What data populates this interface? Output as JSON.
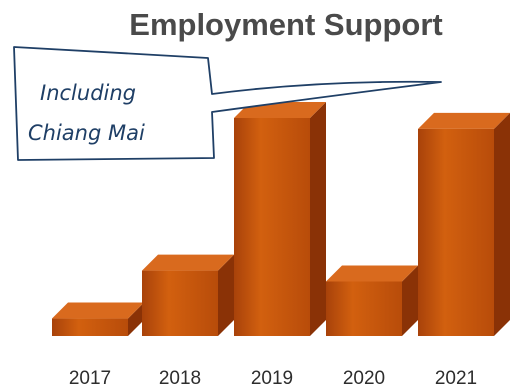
{
  "chart_data": {
    "type": "bar",
    "title": "Employment Support",
    "categories": [
      "2017",
      "2018",
      "2019",
      "2020",
      "2021"
    ],
    "values": [
      8,
      30,
      100,
      25,
      95
    ],
    "xlabel": "",
    "ylabel": "",
    "ylim": [
      0,
      100
    ],
    "grid": false,
    "legend": "none",
    "bar_style": "3d",
    "annotation": {
      "lines": [
        "Including",
        "Chiang Mai"
      ]
    }
  },
  "colors": {
    "bar_front": "#c9560a",
    "bar_front_dark": "#a8420a",
    "bar_top": "#d96a1e",
    "bar_side": "#8a3206",
    "callout_stroke": "#1f3f66",
    "title": "#4a4a4a",
    "tick": "#2d2d2d"
  }
}
